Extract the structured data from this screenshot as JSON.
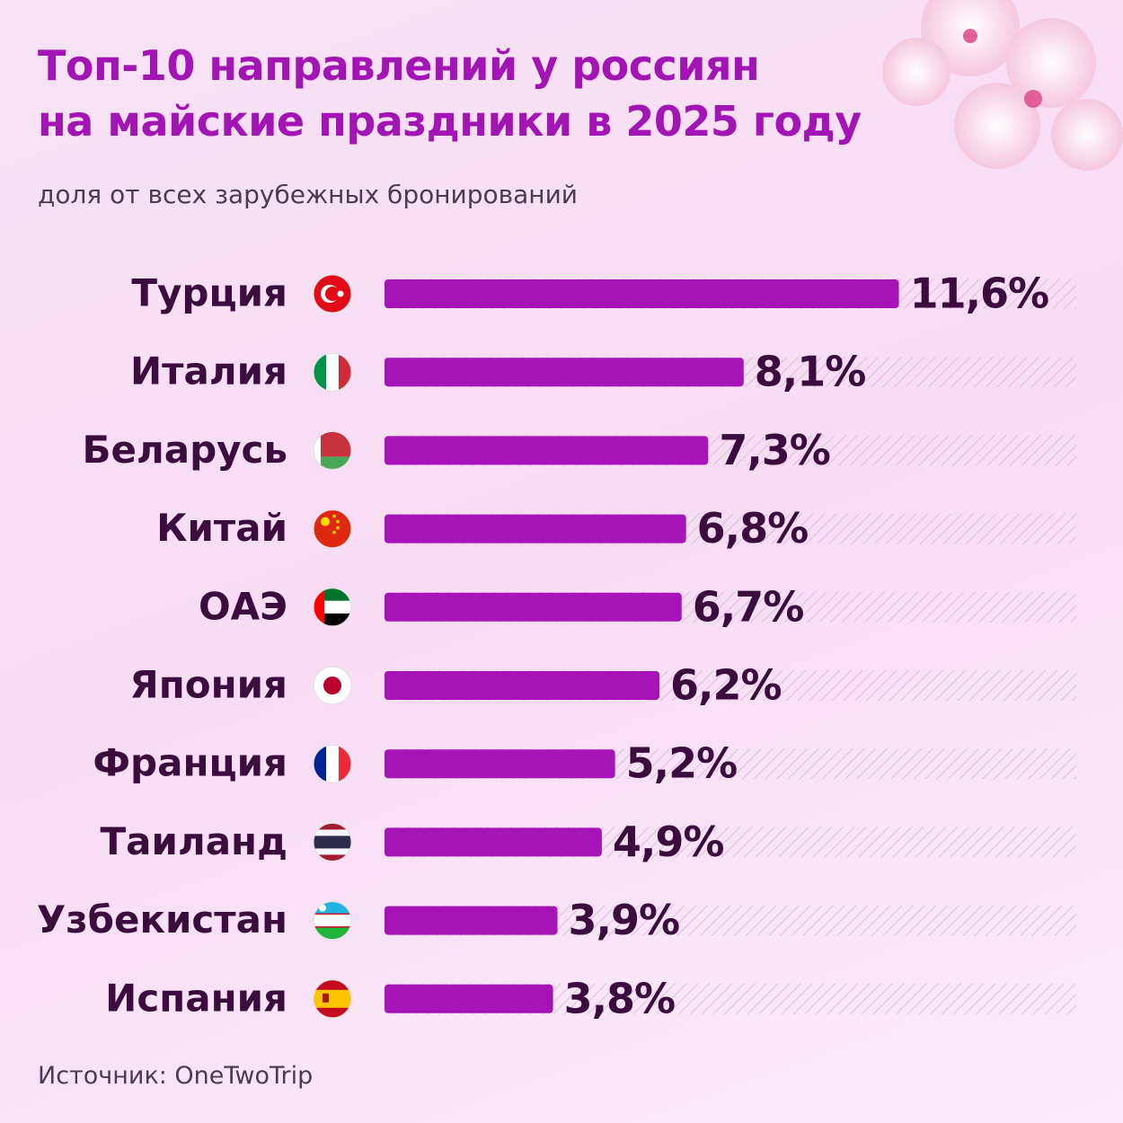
{
  "chart_data": {
    "type": "bar",
    "orientation": "horizontal",
    "title": "Топ-10 направлений у россиян\nна майские праздники в 2025 году",
    "subtitle": "доля от всех зарубежных бронирований",
    "source": "Источник: OneTwoTrip",
    "categories": [
      "Турция",
      "Италия",
      "Беларусь",
      "Китай",
      "ОАЭ",
      "Япония",
      "Франция",
      "Таиланд",
      "Узбекистан",
      "Испания"
    ],
    "values": [
      11.6,
      8.1,
      7.3,
      6.8,
      6.7,
      6.2,
      5.2,
      4.9,
      3.9,
      3.8
    ],
    "value_labels": [
      "11,6%",
      "8,1%",
      "7,3%",
      "6,8%",
      "6,7%",
      "6,2%",
      "5,2%",
      "4,9%",
      "3,9%",
      "3,8%"
    ],
    "color": "#a614b8",
    "xlim": [
      0,
      15.6
    ]
  }
}
